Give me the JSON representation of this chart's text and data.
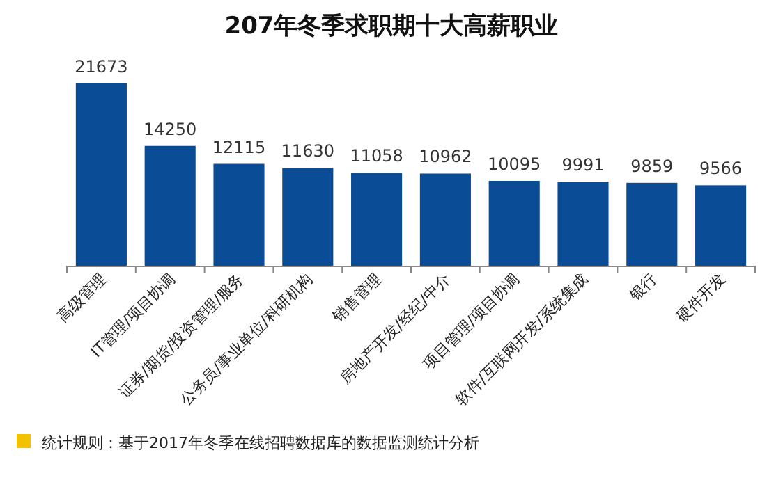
{
  "chart_data": {
    "type": "bar",
    "title": "207年冬季求职期十大高薪职业",
    "categories": [
      "高级管理",
      "IT管理/项目协调",
      "证券/期货/投资管理/服务",
      "公务员/事业单位/科研机构",
      "销售管理",
      "房地产开发/经纪/中介",
      "项目管理/项目协调",
      "软件/互联网开发/系统集成",
      "银行",
      "硬件开发"
    ],
    "values": [
      21673,
      14250,
      12115,
      11630,
      11058,
      10962,
      10095,
      9991,
      9859,
      9566
    ],
    "color": "#0b4c97",
    "data_labels": true,
    "annotations": [
      "统计规则：基于2017年冬季在线招聘数据库的数据监测统计分析"
    ]
  }
}
